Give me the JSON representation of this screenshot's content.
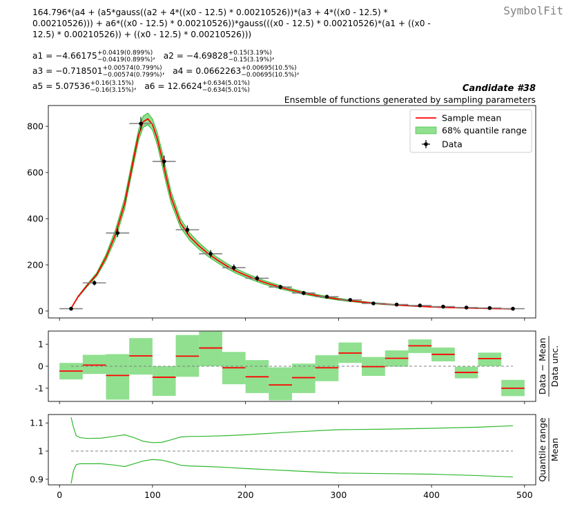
{
  "header": {
    "formula_lines": [
      "164.796*(a4 + (a5*gauss((a2 + 4*((x0 - 12.5) * 0.00210526))*(a3 + 4*((x0 - 12.5) *",
      "0.00210526))) + a6*((x0 - 12.5) * 0.00210526))*gauss(((x0 - 12.5) * 0.00210526)*(a1 + ((x0 -",
      "12.5) * 0.00210526)) + ((x0 - 12.5) * 0.00210526)))"
    ],
    "brand": "SymbolFit",
    "candidate": "Candidate #38",
    "subtitle": "Ensemble of functions generated by sampling parameters"
  },
  "parameters": [
    {
      "name": "a1",
      "value": "−4.66175",
      "plus": "+0.0419(0.899%)",
      "minus": "−0.0419(0.899%)"
    },
    {
      "name": "a2",
      "value": "−4.69828",
      "plus": "+0.15(3.19%)",
      "minus": "−0.15(3.19%)"
    },
    {
      "name": "a3",
      "value": "−0.718501",
      "plus": "+0.00574(0.799%)",
      "minus": "−0.00574(0.799%)"
    },
    {
      "name": "a4",
      "value": "0.0662263",
      "plus": "+0.00695(10.5%)",
      "minus": "−0.00695(10.5%)"
    },
    {
      "name": "a5",
      "value": "5.07536",
      "plus": "+0.16(3.15%)",
      "minus": "−0.16(3.15%)"
    },
    {
      "name": "a6",
      "value": "12.6624",
      "plus": "+0.634(5.01%)",
      "minus": "−0.634(5.01%)"
    }
  ],
  "chart_data": [
    {
      "type": "line",
      "panel": "main",
      "xlim": [
        -12,
        512
      ],
      "ylim": [
        -30,
        890
      ],
      "yticks": [
        0,
        200,
        400,
        600,
        800
      ],
      "xticks": [
        0,
        100,
        200,
        300,
        400,
        500
      ],
      "legend": {
        "position": "top-right",
        "entries": [
          "Sample mean",
          "68% quantile range",
          "Data"
        ]
      },
      "data_points": {
        "x": [
          12.5,
          37.5,
          62.5,
          87.5,
          112.5,
          137.5,
          162.5,
          187.5,
          212.5,
          237.5,
          262.5,
          287.5,
          312.5,
          337.5,
          362.5,
          387.5,
          412.5,
          437.5,
          462.5,
          487.5
        ],
        "y": [
          10,
          122,
          338,
          812,
          648,
          352,
          248,
          188,
          142,
          104,
          78,
          62,
          48,
          33,
          28,
          24,
          19,
          15,
          13,
          10
        ],
        "yerr": [
          3,
          11,
          18,
          28,
          25,
          19,
          16,
          14,
          12,
          10,
          9,
          8,
          7,
          6,
          5,
          5,
          4,
          4,
          4,
          3
        ],
        "xerr": 12.5
      },
      "mean_curve": {
        "x": [
          12.5,
          20,
          30,
          40,
          50,
          60,
          70,
          80,
          85,
          90,
          95,
          100,
          105,
          110,
          115,
          120,
          130,
          140,
          150,
          160,
          170,
          180,
          190,
          200,
          220,
          240,
          260,
          280,
          300,
          320,
          340,
          360,
          380,
          400,
          420,
          440,
          460,
          487.5
        ],
        "y": [
          12,
          62,
          112,
          158,
          232,
          330,
          465,
          665,
          762,
          820,
          832,
          808,
          748,
          666,
          576,
          492,
          382,
          322,
          282,
          248,
          220,
          195,
          173,
          155,
          124,
          100,
          80,
          64,
          51,
          41,
          33,
          27,
          22,
          18,
          15,
          13,
          11,
          9
        ]
      },
      "band_halfwidth_frac": [
        0.12,
        0.05,
        0.045,
        0.045,
        0.055,
        0.06,
        0.05,
        0.035,
        0.03,
        0.03,
        0.03,
        0.03,
        0.035,
        0.045,
        0.05,
        0.05,
        0.05,
        0.05,
        0.05,
        0.05,
        0.052,
        0.055,
        0.058,
        0.06,
        0.065,
        0.07,
        0.072,
        0.075,
        0.078,
        0.078,
        0.077,
        0.076,
        0.078,
        0.08,
        0.082,
        0.085,
        0.088,
        0.09
      ]
    },
    {
      "type": "bar",
      "panel": "residual",
      "ylabel_top": "Data − Mean",
      "ylabel_bottom": "Data unc.",
      "xlim": [
        -12,
        512
      ],
      "ylim": [
        -1.6,
        1.6
      ],
      "yticks": [
        -1,
        0,
        1
      ],
      "x": [
        12.5,
        37.5,
        62.5,
        87.5,
        112.5,
        137.5,
        162.5,
        187.5,
        212.5,
        237.5,
        262.5,
        287.5,
        312.5,
        337.5,
        362.5,
        387.5,
        412.5,
        437.5,
        462.5,
        487.5
      ],
      "mean": [
        -0.22,
        0.05,
        -0.42,
        0.47,
        -0.5,
        0.46,
        0.83,
        -0.07,
        -0.48,
        -0.85,
        -0.52,
        -0.07,
        0.6,
        -0.02,
        0.36,
        0.93,
        0.54,
        -0.28,
        0.35,
        -1.0
      ],
      "lower": [
        -0.6,
        -0.35,
        -1.52,
        -0.38,
        -1.35,
        -0.48,
        0.0,
        -0.82,
        -1.22,
        -1.55,
        -1.22,
        -0.68,
        0.15,
        -0.44,
        -0.02,
        0.6,
        0.22,
        -0.55,
        0.0,
        -1.36
      ],
      "upper": [
        0.15,
        0.52,
        0.55,
        1.28,
        0.0,
        1.42,
        1.58,
        0.65,
        0.28,
        -0.05,
        0.12,
        0.5,
        1.08,
        0.42,
        0.72,
        1.22,
        0.85,
        -0.02,
        0.62,
        -0.62
      ]
    },
    {
      "type": "line",
      "panel": "ratio",
      "ylabel_top": "Quantile range",
      "ylabel_bottom": "Mean",
      "xlim": [
        -12,
        512
      ],
      "ylim": [
        0.88,
        1.13
      ],
      "yticks": [
        0.9,
        1,
        1.1
      ],
      "yticklabels": [
        "0.9",
        "1",
        "1.1"
      ],
      "x": [
        12.5,
        15,
        18,
        22,
        30,
        45,
        60,
        70,
        80,
        90,
        100,
        110,
        120,
        130,
        140,
        160,
        180,
        200,
        250,
        300,
        350,
        400,
        450,
        487.5
      ],
      "upper": [
        1.12,
        1.085,
        1.055,
        1.048,
        1.045,
        1.046,
        1.053,
        1.058,
        1.048,
        1.035,
        1.03,
        1.031,
        1.04,
        1.05,
        1.052,
        1.053,
        1.055,
        1.058,
        1.068,
        1.076,
        1.078,
        1.081,
        1.085,
        1.09
      ],
      "lower": [
        0.885,
        0.93,
        0.952,
        0.955,
        0.955,
        0.955,
        0.95,
        0.945,
        0.955,
        0.965,
        0.97,
        0.968,
        0.96,
        0.95,
        0.947,
        0.945,
        0.942,
        0.938,
        0.93,
        0.922,
        0.92,
        0.918,
        0.913,
        0.908
      ]
    }
  ],
  "colors": {
    "mean": "#ff0000",
    "band": "#90e090",
    "band_edge": "#2db82d",
    "data": "#000000",
    "xerr": "#808080"
  }
}
